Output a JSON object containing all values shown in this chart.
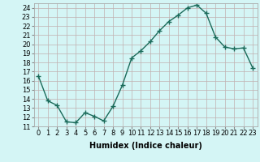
{
  "x": [
    0,
    1,
    2,
    3,
    4,
    5,
    6,
    7,
    8,
    9,
    10,
    11,
    12,
    13,
    14,
    15,
    16,
    17,
    18,
    19,
    20,
    21,
    22,
    23
  ],
  "y": [
    16.5,
    13.8,
    13.3,
    11.5,
    11.4,
    12.5,
    12.1,
    11.6,
    13.2,
    15.5,
    18.5,
    19.3,
    20.3,
    21.5,
    22.5,
    23.2,
    24.0,
    24.3,
    23.4,
    20.8,
    19.7,
    19.5,
    19.6,
    17.4
  ],
  "line_color": "#1a6b5a",
  "marker": "+",
  "marker_size": 4,
  "marker_lw": 1.0,
  "line_width": 1.0,
  "bg_color": "#d4f5f5",
  "grid_color": "#c0b0b0",
  "xlabel": "Humidex (Indice chaleur)",
  "xlabel_fontsize": 7,
  "tick_fontsize": 6,
  "ylim": [
    11,
    24.5
  ],
  "xlim": [
    -0.5,
    23.5
  ],
  "yticks": [
    11,
    12,
    13,
    14,
    15,
    16,
    17,
    18,
    19,
    20,
    21,
    22,
    23,
    24
  ],
  "xticks": [
    0,
    1,
    2,
    3,
    4,
    5,
    6,
    7,
    8,
    9,
    10,
    11,
    12,
    13,
    14,
    15,
    16,
    17,
    18,
    19,
    20,
    21,
    22,
    23
  ],
  "xtick_labels": [
    "0",
    "1",
    "2",
    "3",
    "4",
    "5",
    "6",
    "7",
    "8",
    "9",
    "10",
    "11",
    "12",
    "13",
    "14",
    "15",
    "16",
    "17",
    "18",
    "19",
    "20",
    "21",
    "22",
    "23"
  ]
}
